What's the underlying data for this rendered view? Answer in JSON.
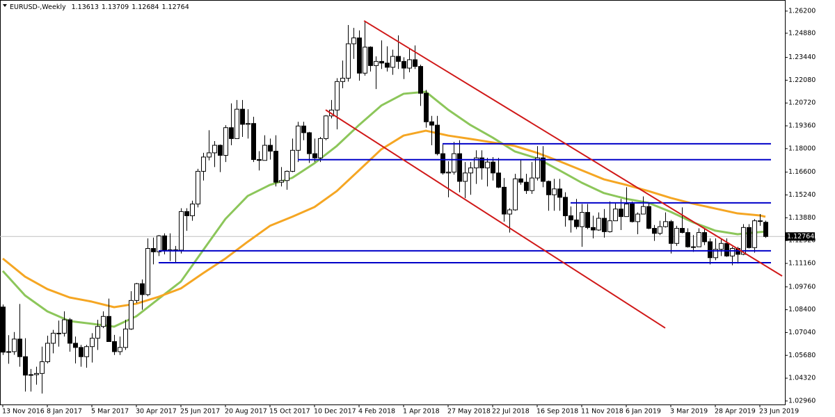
{
  "chart_data": {
    "type": "candlestick",
    "title": "EURUSD-,Weekly",
    "categories": [
      "13 Nov 2016",
      null,
      null,
      null,
      null,
      null,
      null,
      null,
      "8 Jan 2017",
      null,
      null,
      null,
      null,
      null,
      null,
      null,
      "5 Mar 2017",
      null,
      null,
      null,
      null,
      null,
      null,
      null,
      "30 Apr 2017",
      null,
      null,
      null,
      null,
      null,
      null,
      null,
      "25 Jun 2017",
      null,
      null,
      null,
      null,
      null,
      null,
      null,
      "20 Aug 2017",
      null,
      null,
      null,
      null,
      null,
      null,
      null,
      "15 Oct 2017",
      null,
      null,
      null,
      null,
      null,
      null,
      null,
      "10 Dec 2017",
      null,
      null,
      null,
      null,
      null,
      null,
      null,
      "4 Feb 2018",
      null,
      null,
      null,
      null,
      null,
      null,
      null,
      "1 Apr 2018",
      null,
      null,
      null,
      null,
      null,
      null,
      null,
      "27 May 2018",
      null,
      null,
      null,
      null,
      null,
      null,
      null,
      "22 Jul 2018",
      null,
      null,
      null,
      null,
      null,
      null,
      null,
      "16 Sep 2018",
      null,
      null,
      null,
      null,
      null,
      null,
      null,
      "11 Nov 2018",
      null,
      null,
      null,
      null,
      null,
      null,
      null,
      "6 Jan 2019",
      null,
      null,
      null,
      null,
      null,
      null,
      null,
      "3 Mar 2019",
      null,
      null,
      null,
      null,
      null,
      null,
      null,
      "28 Apr 2019",
      null,
      null,
      null,
      null,
      null,
      null,
      null,
      "23 Jun 2019",
      null
    ],
    "open": [
      1.0856,
      1.059,
      1.059,
      1.0665,
      1.056,
      1.045,
      1.0453,
      1.046,
      1.053,
      1.064,
      1.07,
      1.07,
      1.078,
      1.064,
      1.0615,
      1.056,
      1.062,
      1.067,
      1.074,
      1.08,
      1.065,
      1.059,
      1.0615,
      1.0725,
      1.0895,
      1.0995,
      1.093,
      1.1205,
      1.1185,
      1.128,
      1.1195,
      1.1197,
      1.1195,
      1.1425,
      1.14,
      1.147,
      1.1665,
      1.175,
      1.1775,
      1.182,
      1.176,
      1.1925,
      1.186,
      1.2035,
      1.1945,
      1.195,
      1.1735,
      1.173,
      1.182,
      1.1785,
      1.16,
      1.161,
      1.1665,
      1.179,
      1.1935,
      1.1895,
      1.177,
      1.1745,
      1.186,
      1.1995,
      1.203,
      1.22,
      1.222,
      1.2425,
      1.246,
      1.225,
      1.2405,
      1.2295,
      1.232,
      1.231,
      1.2285,
      1.235,
      1.232,
      1.228,
      1.233,
      1.229,
      1.213,
      1.196,
      1.194,
      1.177,
      1.1655,
      1.166,
      1.177,
      1.1605,
      1.1655,
      1.1685,
      1.1745,
      1.1685,
      1.172,
      1.1655,
      1.157,
      1.141,
      1.1435,
      1.162,
      1.16,
      1.155,
      1.1625,
      1.1745,
      1.1605,
      1.1525,
      1.156,
      1.151,
      1.14,
      1.1375,
      1.1335,
      1.142,
      1.133,
      1.1315,
      1.1385,
      1.1305,
      1.137,
      1.144,
      1.1395,
      1.147,
      1.1365,
      1.141,
      1.1455,
      1.1325,
      1.1295,
      1.1335,
      1.1365,
      1.1235,
      1.1325,
      1.13,
      1.1215,
      1.1215,
      1.13,
      1.1245,
      1.115,
      1.12,
      1.1235,
      1.116,
      1.1205,
      1.117,
      1.133,
      1.121,
      1.137,
      1.13613
    ],
    "high": [
      1.0871,
      1.0688,
      1.0707,
      1.0874,
      1.067,
      1.0487,
      1.05,
      1.062,
      1.0685,
      1.072,
      1.0775,
      1.083,
      1.079,
      1.068,
      1.063,
      1.063,
      1.07,
      1.078,
      1.083,
      1.0906,
      1.069,
      1.068,
      1.078,
      1.095,
      1.1,
      1.102,
      1.1265,
      1.127,
      1.1285,
      1.1295,
      1.1295,
      1.122,
      1.1445,
      1.1445,
      1.149,
      1.168,
      1.1775,
      1.191,
      1.1845,
      1.1825,
      1.194,
      1.207,
      1.209,
      1.209,
      1.2035,
      1.199,
      1.1785,
      1.188,
      1.186,
      1.188,
      1.169,
      1.167,
      1.186,
      1.196,
      1.196,
      1.19,
      1.186,
      1.187,
      1.2,
      1.209,
      1.222,
      1.2325,
      1.2537,
      1.252,
      1.2505,
      1.2555,
      1.241,
      1.235,
      1.2445,
      1.241,
      1.239,
      1.2475,
      1.2345,
      1.2395,
      1.2415,
      1.23,
      1.215,
      1.1995,
      1.1995,
      1.183,
      1.1725,
      1.184,
      1.185,
      1.172,
      1.172,
      1.179,
      1.179,
      1.1745,
      1.175,
      1.1745,
      1.1625,
      1.1445,
      1.165,
      1.1735,
      1.165,
      1.172,
      1.1815,
      1.1815,
      1.161,
      1.162,
      1.162,
      1.154,
      1.1455,
      1.15,
      1.147,
      1.147,
      1.14,
      1.142,
      1.144,
      1.1485,
      1.1475,
      1.15,
      1.157,
      1.1485,
      1.142,
      1.1515,
      1.148,
      1.1345,
      1.137,
      1.142,
      1.1375,
      1.134,
      1.145,
      1.1325,
      1.1285,
      1.1325,
      1.1325,
      1.1265,
      1.1265,
      1.1265,
      1.1265,
      1.1215,
      1.1215,
      1.135,
      1.135,
      1.138,
      1.141,
      1.13709
    ],
    "low": [
      1.057,
      1.0518,
      1.0571,
      1.05,
      1.0352,
      1.0352,
      1.0393,
      1.034,
      1.052,
      1.058,
      1.062,
      1.068,
      1.059,
      1.052,
      1.05,
      1.0494,
      1.0525,
      1.06,
      1.073,
      1.065,
      1.057,
      1.057,
      1.06,
      1.072,
      1.088,
      1.084,
      1.092,
      1.111,
      1.116,
      1.117,
      1.113,
      1.112,
      1.1175,
      1.131,
      1.137,
      1.145,
      1.161,
      1.173,
      1.169,
      1.166,
      1.172,
      1.182,
      1.186,
      1.187,
      1.186,
      1.172,
      1.167,
      1.173,
      1.1735,
      1.1575,
      1.1575,
      1.1555,
      1.166,
      1.172,
      1.185,
      1.1715,
      1.172,
      1.172,
      1.185,
      1.198,
      1.1915,
      1.216,
      1.22,
      1.2335,
      1.2205,
      1.2235,
      1.226,
      1.2155,
      1.2275,
      1.226,
      1.224,
      1.2275,
      1.2215,
      1.2255,
      1.2275,
      1.2055,
      1.1925,
      1.182,
      1.176,
      1.1645,
      1.151,
      1.1645,
      1.154,
      1.1505,
      1.1525,
      1.159,
      1.1615,
      1.1575,
      1.161,
      1.1565,
      1.1365,
      1.13,
      1.143,
      1.1585,
      1.153,
      1.153,
      1.161,
      1.157,
      1.143,
      1.143,
      1.143,
      1.1335,
      1.13,
      1.132,
      1.1215,
      1.132,
      1.1265,
      1.131,
      1.127,
      1.13,
      1.137,
      1.1315,
      1.1395,
      1.136,
      1.129,
      1.141,
      1.132,
      1.125,
      1.1285,
      1.133,
      1.1175,
      1.122,
      1.1295,
      1.121,
      1.1185,
      1.1215,
      1.1225,
      1.111,
      1.1135,
      1.116,
      1.1155,
      1.1105,
      1.1115,
      1.1165,
      1.1205,
      1.118,
      1.134,
      1.12684
    ],
    "close": [
      1.0587,
      1.0588,
      1.0665,
      1.056,
      1.045,
      1.0453,
      1.046,
      1.053,
      1.064,
      1.07,
      1.07,
      1.078,
      1.064,
      1.0615,
      1.056,
      1.062,
      1.067,
      1.074,
      1.08,
      1.065,
      1.059,
      1.0615,
      1.0725,
      1.0895,
      1.0995,
      1.093,
      1.1205,
      1.1185,
      1.128,
      1.1195,
      1.1197,
      1.1195,
      1.1425,
      1.14,
      1.147,
      1.1665,
      1.175,
      1.1775,
      1.182,
      1.176,
      1.1925,
      1.186,
      1.2035,
      1.1945,
      1.195,
      1.1735,
      1.173,
      1.182,
      1.1785,
      1.16,
      1.161,
      1.1665,
      1.179,
      1.1935,
      1.1895,
      1.177,
      1.1745,
      1.186,
      1.1995,
      1.203,
      1.22,
      1.222,
      1.2425,
      1.246,
      1.225,
      1.2405,
      1.2295,
      1.232,
      1.231,
      1.2285,
      1.235,
      1.232,
      1.228,
      1.233,
      1.229,
      1.213,
      1.196,
      1.194,
      1.177,
      1.1655,
      1.166,
      1.177,
      1.1605,
      1.1655,
      1.1685,
      1.1745,
      1.1685,
      1.172,
      1.1655,
      1.157,
      1.141,
      1.1435,
      1.162,
      1.16,
      1.155,
      1.1625,
      1.1745,
      1.1605,
      1.1525,
      1.156,
      1.151,
      1.14,
      1.1375,
      1.1335,
      1.142,
      1.133,
      1.1315,
      1.1385,
      1.1305,
      1.137,
      1.144,
      1.1395,
      1.147,
      1.1365,
      1.141,
      1.1455,
      1.1325,
      1.1295,
      1.1335,
      1.1365,
      1.1235,
      1.1325,
      1.13,
      1.1215,
      1.1215,
      1.13,
      1.1245,
      1.115,
      1.12,
      1.1235,
      1.116,
      1.1205,
      1.117,
      1.133,
      1.121,
      1.137,
      1.137,
      1.12764
    ],
    "up_color": "#ffffff",
    "down_color": "#000000",
    "ma": [
      {
        "color": "#8cc65a",
        "x": [
          0,
          4,
          8,
          12,
          16,
          20,
          24,
          28,
          32,
          36,
          40,
          44,
          48,
          52,
          56,
          60,
          64,
          68,
          72,
          76,
          80,
          84,
          88,
          92,
          96,
          100,
          104,
          108,
          112,
          116,
          120,
          124,
          128,
          132,
          136,
          137
        ],
        "values": [
          1.1071,
          1.0925,
          1.083,
          1.0772,
          1.0756,
          1.0739,
          1.0801,
          1.0905,
          1.1008,
          1.1195,
          1.1381,
          1.1518,
          1.1584,
          1.1626,
          1.1713,
          1.1816,
          1.1941,
          1.2057,
          1.2127,
          1.2139,
          1.2032,
          1.1941,
          1.1866,
          1.1783,
          1.1742,
          1.1671,
          1.1597,
          1.1535,
          1.1501,
          1.1477,
          1.1423,
          1.1361,
          1.1311,
          1.129,
          1.1303,
          1.1305
        ]
      },
      {
        "color": "#f5a623",
        "x": [
          0,
          4,
          8,
          12,
          16,
          20,
          24,
          28,
          32,
          36,
          40,
          44,
          48,
          52,
          56,
          60,
          64,
          68,
          72,
          76,
          80,
          84,
          88,
          92,
          96,
          100,
          104,
          108,
          112,
          116,
          120,
          124,
          128,
          132,
          136,
          137
        ],
        "values": [
          1.1145,
          1.1037,
          1.0963,
          1.0913,
          1.0888,
          1.0855,
          1.0876,
          1.0917,
          1.0967,
          1.1058,
          1.1145,
          1.1245,
          1.134,
          1.1394,
          1.1452,
          1.1547,
          1.1671,
          1.1796,
          1.1878,
          1.1907,
          1.1878,
          1.1858,
          1.1837,
          1.1816,
          1.1775,
          1.1725,
          1.1671,
          1.1617,
          1.1584,
          1.1547,
          1.1506,
          1.1472,
          1.1443,
          1.1414,
          1.1402,
          1.1394
        ]
      }
    ],
    "trendlines": [
      {
        "color": "#d01818",
        "x": [
          64.9,
          140
        ],
        "values": [
          1.2562,
          1.1041
        ]
      },
      {
        "color": "#d01818",
        "x": [
          58,
          119
        ],
        "values": [
          1.2031,
          1.0731
        ]
      }
    ],
    "hlines": [
      {
        "color": "#0000c8",
        "value": 1.1829,
        "from": 79,
        "to": 138
      },
      {
        "color": "#0000c8",
        "value": 1.1734,
        "from": 53,
        "to": 138
      },
      {
        "color": "#0000c8",
        "value": 1.1477,
        "from": 102,
        "to": 138
      },
      {
        "color": "#0000c8",
        "value": 1.1191,
        "from": 28,
        "to": 138
      },
      {
        "color": "#0000c8",
        "value": 1.112,
        "from": 28,
        "to": 138
      }
    ],
    "ylim": [
      1.0275,
      1.2686
    ],
    "yticks": [
      {
        "value": 1.262,
        "label": "1.26200"
      },
      {
        "value": 1.2488,
        "label": "1.24880"
      },
      {
        "value": 1.2344,
        "label": "1.23440"
      },
      {
        "value": 1.2208,
        "label": "1.22080"
      },
      {
        "value": 1.2072,
        "label": "1.20720"
      },
      {
        "value": 1.1936,
        "label": "1.19360"
      },
      {
        "value": 1.18,
        "label": "1.18000"
      },
      {
        "value": 1.166,
        "label": "1.16600"
      },
      {
        "value": 1.1524,
        "label": "1.15240"
      },
      {
        "value": 1.1388,
        "label": "1.13880"
      },
      {
        "value": 1.1252,
        "label": "1.12520"
      },
      {
        "value": 1.1116,
        "label": "1.11160"
      },
      {
        "value": 1.0976,
        "label": "1.09760"
      },
      {
        "value": 1.084,
        "label": "1.08400"
      },
      {
        "value": 1.0704,
        "label": "1.07040"
      },
      {
        "value": 1.0568,
        "label": "1.05680"
      },
      {
        "value": 1.0432,
        "label": "1.04320"
      },
      {
        "value": 1.0296,
        "label": "1.02960"
      }
    ],
    "grid": false
  }
}
